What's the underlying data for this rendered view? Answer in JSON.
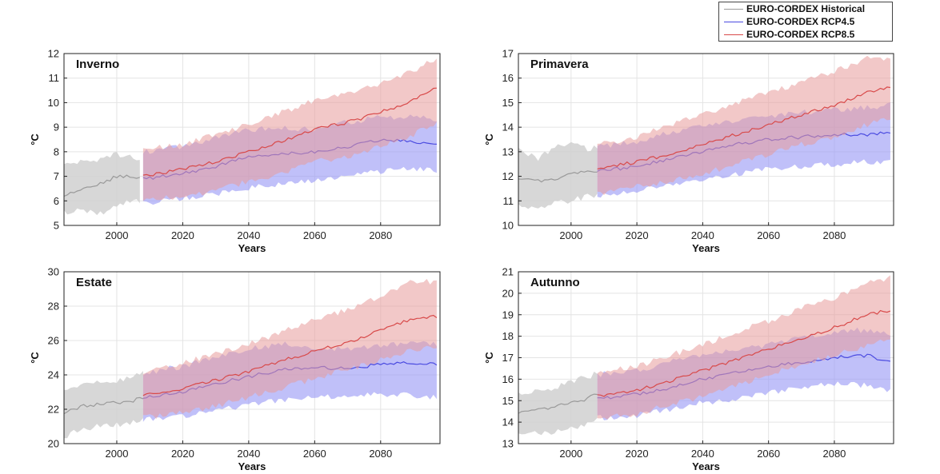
{
  "legend": {
    "items": [
      {
        "label": "EURO-CORDEX Historical",
        "color": "#9a9a9a"
      },
      {
        "label": "EURO-CORDEX RCP4.5",
        "color": "#4a4ae0"
      },
      {
        "label": "EURO-CORDEX RCP8.5",
        "color": "#d84a4a"
      }
    ]
  },
  "colors": {
    "hist_fill": "#d0d0d0",
    "hist_line": "#9a9a9a",
    "rcp45_fill": "#9a9af5",
    "rcp45_line": "#4a4ae0",
    "rcp85_fill": "#e89a9a",
    "rcp85_line": "#d84a4a"
  },
  "chart_data": [
    {
      "type": "area",
      "title": "Inverno",
      "xlabel": "Years",
      "ylabel": "°C",
      "xlim": [
        1984,
        2098
      ],
      "ylim": [
        5,
        12
      ],
      "xticks": [
        2000,
        2020,
        2040,
        2060,
        2080
      ],
      "yticks": [
        5,
        6,
        7,
        8,
        9,
        10,
        11,
        12
      ],
      "series": [
        {
          "name": "EURO-CORDEX Historical",
          "x": [
            1984,
            1990,
            1995,
            2000,
            2005,
            2007
          ],
          "mean": [
            6.2,
            6.5,
            6.7,
            7.0,
            7.0,
            6.9
          ],
          "lower": [
            5.5,
            5.6,
            5.5,
            5.8,
            6.1,
            5.9
          ],
          "upper": [
            7.4,
            7.6,
            7.7,
            7.9,
            7.8,
            7.6
          ]
        },
        {
          "name": "EURO-CORDEX RCP4.5",
          "x": [
            2008,
            2020,
            2030,
            2040,
            2050,
            2060,
            2070,
            2080,
            2090,
            2097
          ],
          "mean": [
            6.9,
            7.1,
            7.4,
            7.8,
            7.9,
            8.0,
            8.2,
            8.5,
            8.4,
            8.3
          ],
          "lower": [
            5.9,
            6.1,
            6.3,
            6.5,
            6.7,
            6.8,
            7.0,
            7.2,
            7.3,
            7.2
          ],
          "upper": [
            8.0,
            8.2,
            8.6,
            8.9,
            9.0,
            8.9,
            9.2,
            9.4,
            9.4,
            9.3
          ]
        },
        {
          "name": "EURO-CORDEX RCP8.5",
          "x": [
            2008,
            2020,
            2030,
            2040,
            2050,
            2060,
            2070,
            2080,
            2090,
            2097
          ],
          "mean": [
            7.0,
            7.3,
            7.6,
            8.0,
            8.4,
            8.9,
            9.2,
            9.6,
            10.1,
            10.6
          ],
          "lower": [
            6.0,
            6.2,
            6.4,
            6.8,
            7.1,
            7.6,
            7.8,
            8.2,
            8.7,
            9.2
          ],
          "upper": [
            8.1,
            8.3,
            8.7,
            9.1,
            9.6,
            10.1,
            10.4,
            10.8,
            11.3,
            11.8
          ]
        }
      ]
    },
    {
      "type": "area",
      "title": "Primavera",
      "xlabel": "Years",
      "ylabel": "°C",
      "xlim": [
        1984,
        2098
      ],
      "ylim": [
        10,
        17
      ],
      "xticks": [
        2000,
        2020,
        2040,
        2060,
        2080
      ],
      "yticks": [
        10,
        11,
        12,
        13,
        14,
        15,
        16,
        17
      ],
      "series": [
        {
          "name": "EURO-CORDEX Historical",
          "x": [
            1984,
            1990,
            1995,
            2000,
            2005,
            2008
          ],
          "mean": [
            11.9,
            11.8,
            11.9,
            12.1,
            12.2,
            12.2
          ],
          "lower": [
            10.8,
            10.7,
            10.9,
            11.0,
            11.2,
            11.2
          ],
          "upper": [
            13.1,
            12.7,
            13.2,
            13.3,
            13.1,
            13.2
          ]
        },
        {
          "name": "EURO-CORDEX RCP4.5",
          "x": [
            2008,
            2020,
            2030,
            2040,
            2050,
            2060,
            2070,
            2080,
            2090,
            2097
          ],
          "mean": [
            12.2,
            12.4,
            12.7,
            13.0,
            13.3,
            13.5,
            13.6,
            13.7,
            13.7,
            13.8
          ],
          "lower": [
            11.2,
            11.4,
            11.6,
            11.9,
            12.1,
            12.3,
            12.4,
            12.5,
            12.6,
            12.6
          ],
          "upper": [
            13.2,
            13.4,
            13.8,
            14.0,
            14.3,
            14.4,
            14.6,
            14.7,
            14.8,
            14.9
          ]
        },
        {
          "name": "EURO-CORDEX RCP8.5",
          "x": [
            2008,
            2020,
            2030,
            2040,
            2050,
            2060,
            2070,
            2080,
            2090,
            2097
          ],
          "mean": [
            12.3,
            12.6,
            12.9,
            13.3,
            13.7,
            14.1,
            14.5,
            14.9,
            15.4,
            15.6
          ],
          "lower": [
            11.3,
            11.6,
            11.8,
            12.1,
            12.5,
            12.9,
            13.3,
            13.6,
            14.1,
            14.4
          ],
          "upper": [
            13.3,
            13.6,
            14.1,
            14.5,
            15.0,
            15.4,
            15.8,
            16.3,
            16.8,
            16.7
          ]
        }
      ]
    },
    {
      "type": "area",
      "title": "Estate",
      "xlabel": "Years",
      "ylabel": "°C",
      "xlim": [
        1984,
        2098
      ],
      "ylim": [
        20,
        30
      ],
      "xticks": [
        2000,
        2020,
        2040,
        2060,
        2080
      ],
      "yticks": [
        20,
        22,
        24,
        26,
        28,
        30
      ],
      "series": [
        {
          "name": "EURO-CORDEX Historical",
          "x": [
            1984,
            1990,
            1995,
            2000,
            2005,
            2008
          ],
          "mean": [
            21.8,
            22.2,
            22.3,
            22.4,
            22.5,
            22.7
          ],
          "lower": [
            20.4,
            20.9,
            21.0,
            21.1,
            21.3,
            21.5
          ],
          "upper": [
            23.0,
            23.5,
            23.6,
            23.7,
            23.9,
            24.1
          ]
        },
        {
          "name": "EURO-CORDEX RCP4.5",
          "x": [
            2008,
            2020,
            2030,
            2040,
            2050,
            2060,
            2070,
            2080,
            2090,
            2097
          ],
          "mean": [
            22.7,
            23.0,
            23.5,
            23.9,
            24.3,
            24.4,
            24.4,
            24.6,
            24.7,
            24.6
          ],
          "lower": [
            21.4,
            21.6,
            21.9,
            22.3,
            22.5,
            22.7,
            22.8,
            22.9,
            22.8,
            22.7
          ],
          "upper": [
            24.1,
            24.5,
            25.0,
            25.5,
            25.8,
            25.6,
            25.5,
            25.7,
            25.9,
            25.8
          ]
        },
        {
          "name": "EURO-CORDEX RCP8.5",
          "x": [
            2008,
            2020,
            2030,
            2040,
            2050,
            2060,
            2070,
            2080,
            2090,
            2097
          ],
          "mean": [
            22.8,
            23.2,
            23.7,
            24.2,
            24.8,
            25.4,
            25.9,
            26.6,
            27.3,
            27.4
          ],
          "lower": [
            21.5,
            21.8,
            22.2,
            22.7,
            23.2,
            23.8,
            24.3,
            24.9,
            25.5,
            25.6
          ],
          "upper": [
            24.2,
            24.7,
            25.2,
            25.8,
            26.5,
            27.2,
            27.8,
            28.6,
            29.5,
            29.4
          ]
        }
      ]
    },
    {
      "type": "area",
      "title": "Autunno",
      "xlabel": "Years",
      "ylabel": "°C",
      "xlim": [
        1984,
        2098
      ],
      "ylim": [
        13,
        21
      ],
      "xticks": [
        2000,
        2020,
        2040,
        2060,
        2080
      ],
      "yticks": [
        13,
        14,
        15,
        16,
        17,
        18,
        19,
        20,
        21
      ],
      "series": [
        {
          "name": "EURO-CORDEX Historical",
          "x": [
            1984,
            1990,
            1995,
            2000,
            2005,
            2008
          ],
          "mean": [
            14.4,
            14.6,
            14.7,
            14.9,
            15.1,
            15.3
          ],
          "lower": [
            13.4,
            13.5,
            13.5,
            13.7,
            13.9,
            14.1
          ],
          "upper": [
            15.3,
            15.5,
            15.6,
            15.9,
            16.1,
            16.3
          ]
        },
        {
          "name": "EURO-CORDEX RCP4.5",
          "x": [
            2008,
            2020,
            2030,
            2040,
            2050,
            2060,
            2070,
            2080,
            2090,
            2097
          ],
          "mean": [
            15.1,
            15.3,
            15.6,
            16.0,
            16.3,
            16.6,
            16.8,
            17.0,
            17.1,
            16.8
          ],
          "lower": [
            14.2,
            14.3,
            14.6,
            14.9,
            15.1,
            15.4,
            15.6,
            15.8,
            15.7,
            15.4
          ],
          "upper": [
            16.2,
            16.4,
            16.8,
            17.1,
            17.4,
            17.6,
            17.9,
            18.2,
            18.3,
            18.1
          ]
        },
        {
          "name": "EURO-CORDEX RCP8.5",
          "x": [
            2008,
            2020,
            2030,
            2040,
            2050,
            2060,
            2070,
            2080,
            2090,
            2097
          ],
          "mean": [
            15.2,
            15.5,
            15.9,
            16.4,
            16.9,
            17.4,
            17.9,
            18.4,
            19.0,
            19.2
          ],
          "lower": [
            14.2,
            14.4,
            14.8,
            15.2,
            15.7,
            16.2,
            16.7,
            17.1,
            17.6,
            17.9
          ],
          "upper": [
            16.3,
            16.6,
            17.1,
            17.6,
            18.2,
            18.7,
            19.3,
            19.8,
            20.5,
            20.7
          ]
        }
      ]
    }
  ]
}
